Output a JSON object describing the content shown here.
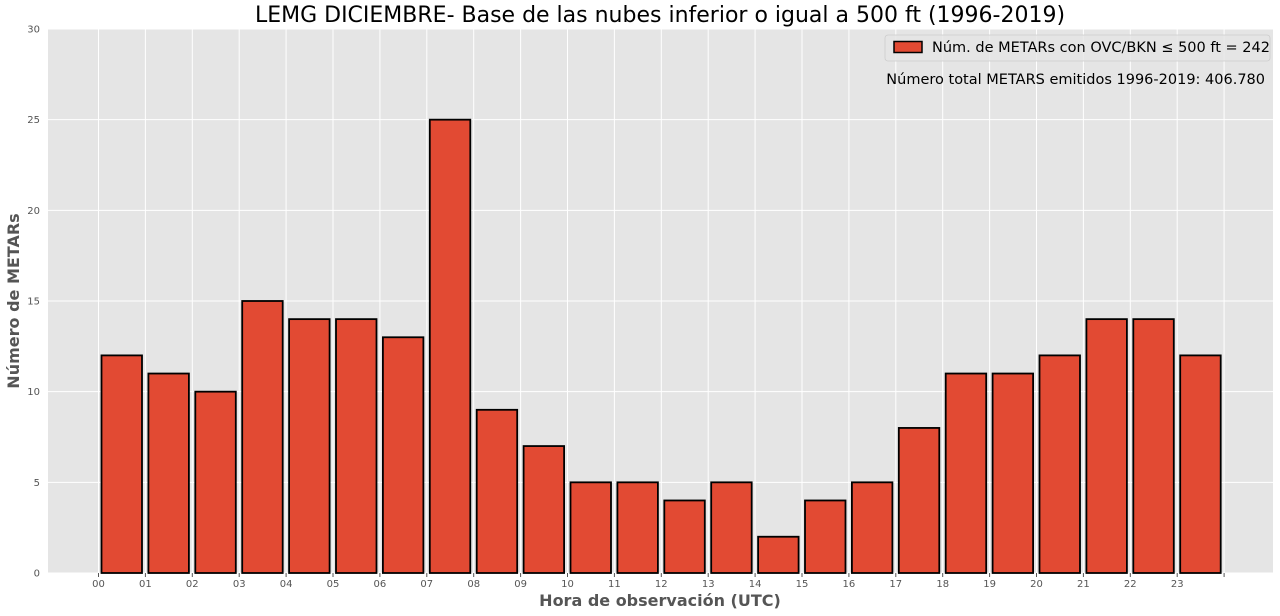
{
  "chart_data": {
    "type": "bar",
    "title": "LEMG DICIEMBRE- Base de las nubes inferior o igual a 500 ft (1996-2019)",
    "xlabel": "Hora de observación (UTC)",
    "ylabel": "Número de METARs",
    "categories": [
      "00",
      "01",
      "02",
      "03",
      "04",
      "05",
      "06",
      "07",
      "08",
      "09",
      "10",
      "11",
      "12",
      "13",
      "14",
      "15",
      "16",
      "17",
      "18",
      "19",
      "20",
      "21",
      "22",
      "23"
    ],
    "series": [
      {
        "name": "Núm. de METARs con OVC/BKN ≤ 500 ft = 242",
        "values": [
          12,
          11,
          10,
          15,
          14,
          14,
          13,
          25,
          9,
          7,
          5,
          5,
          4,
          5,
          2,
          4,
          5,
          8,
          11,
          11,
          12,
          14,
          14,
          12
        ]
      }
    ],
    "ylim": [
      0,
      30
    ],
    "yticks": [
      0,
      5,
      10,
      15,
      20,
      25,
      30
    ],
    "grid": true,
    "legend_position": "top-right",
    "annotation": "Número total METARS emitidos 1996-2019:  406.780",
    "colors": {
      "bar_fill": "#E24A33",
      "bar_edge": "#000000",
      "plot_background": "#E5E5E5",
      "grid": "#FFFFFF"
    }
  }
}
